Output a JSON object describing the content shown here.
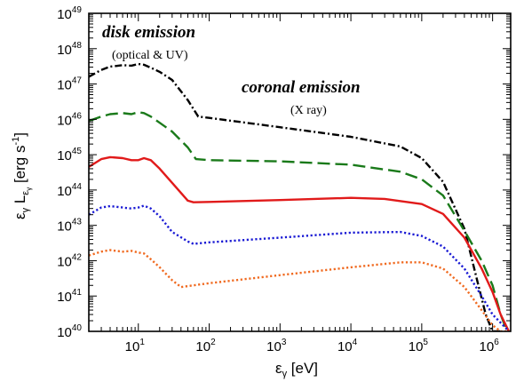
{
  "chart_data": {
    "type": "line",
    "xlabel": "εγ [eV]",
    "ylabel": "εγ Lεγ [erg s-1]",
    "x_scale": "log",
    "y_scale": "log",
    "xlim": [
      2.0,
      1800000.0
    ],
    "ylim": [
      1e+40,
      1e+49
    ],
    "x_ticks": [
      {
        "value": 10,
        "base": "10",
        "exp": "1"
      },
      {
        "value": 100,
        "base": "10",
        "exp": "2"
      },
      {
        "value": 1000,
        "base": "10",
        "exp": "3"
      },
      {
        "value": 10000,
        "base": "10",
        "exp": "4"
      },
      {
        "value": 100000,
        "base": "10",
        "exp": "5"
      },
      {
        "value": 1000000,
        "base": "10",
        "exp": "6"
      }
    ],
    "y_ticks": [
      {
        "value": 1e+40,
        "base": "10",
        "exp": "40"
      },
      {
        "value": 1e+41,
        "base": "10",
        "exp": "41"
      },
      {
        "value": 1e+42,
        "base": "10",
        "exp": "42"
      },
      {
        "value": 1e+43,
        "base": "10",
        "exp": "43"
      },
      {
        "value": 1e+44,
        "base": "10",
        "exp": "44"
      },
      {
        "value": 1e+45,
        "base": "10",
        "exp": "45"
      },
      {
        "value": 1e+46,
        "base": "10",
        "exp": "46"
      },
      {
        "value": 1e+47,
        "base": "10",
        "exp": "47"
      },
      {
        "value": 1e+48,
        "base": "10",
        "exp": "48"
      },
      {
        "value": 1e+49,
        "base": "10",
        "exp": "49"
      }
    ],
    "annotations": {
      "disk_title": "disk emission",
      "disk_sub": "(optical & UV)",
      "corona_title": "coronal emission",
      "corona_sub": "(X ray)"
    },
    "series": [
      {
        "color": "#000000",
        "dash": "dashdot",
        "x": [
          2,
          3,
          4,
          6,
          8,
          10,
          12,
          15,
          20,
          30,
          50,
          70,
          100,
          1000,
          10000,
          50000,
          100000,
          200000,
          400000,
          600000,
          800000,
          1000000,
          1300000
        ],
        "y": [
          1.6e+47,
          2.5e+47,
          3.1e+47,
          3.4e+47,
          3.3e+47,
          3.7e+47,
          3.5e+47,
          2.9e+47,
          2.2e+47,
          1.3e+47,
          3.5e+46,
          1.2e+46,
          1.1e+46,
          6e+45,
          3.2e+45,
          1.7e+45,
          8e+44,
          1.7e+44,
          8e+42,
          3e+41,
          3e+40,
          1e+40,
          1e+40
        ]
      },
      {
        "color": "#1a7a1a",
        "dash": "dashed",
        "x": [
          2,
          3,
          4,
          6,
          8,
          10,
          12,
          15,
          20,
          30,
          50,
          65,
          100,
          1000,
          10000,
          50000,
          100000,
          200000,
          400000,
          700000,
          1000000,
          1300000,
          1600000
        ],
        "y": [
          9e+45,
          1.2e+46,
          1.4e+46,
          1.5e+46,
          1.4e+46,
          1.6e+46,
          1.5e+46,
          1.2e+46,
          8e+45,
          4.5e+45,
          1.6e+45,
          7.5e+44,
          7e+44,
          6.5e+44,
          5.2e+44,
          3.3e+44,
          2e+44,
          7e+43,
          7e+42,
          1e+42,
          2e+41,
          3e+40,
          1e+40
        ]
      },
      {
        "color": "#e11a1a",
        "dash": "solid",
        "x": [
          2,
          3,
          4,
          6,
          8,
          10,
          12,
          15,
          20,
          30,
          50,
          60,
          100,
          1000,
          10000,
          30000,
          100000,
          200000,
          400000,
          700000,
          1000000,
          1300000,
          1700000
        ],
        "y": [
          4.5e+44,
          7.5e+44,
          8.5e+44,
          8e+44,
          7e+44,
          7e+44,
          8e+44,
          7e+44,
          4e+44,
          1.6e+44,
          5e+43,
          4.5e+43,
          4.6e+43,
          5.2e+43,
          6e+43,
          5.6e+43,
          4e+43,
          2.1e+43,
          4.5e+42,
          6e+41,
          1.3e+41,
          3e+40,
          1e+40
        ]
      },
      {
        "color": "#1a1ad4",
        "dash": "dotted",
        "x": [
          2,
          3,
          4,
          6,
          8,
          10,
          12,
          15,
          20,
          30,
          50,
          60,
          100,
          1000,
          10000,
          50000,
          100000,
          200000,
          400000,
          700000,
          1000000,
          1400000,
          1700000
        ],
        "y": [
          2e+43,
          3.2e+43,
          3.5e+43,
          3.2e+43,
          3e+43,
          3.2e+43,
          3.6e+43,
          3e+43,
          1.8e+43,
          6.5e+42,
          3.5e+42,
          3e+42,
          3.3e+42,
          4.5e+42,
          6.2e+42,
          6.5e+42,
          5e+42,
          2.5e+42,
          6e+41,
          1e+41,
          3e+40,
          1.5e+40,
          1e+40
        ]
      },
      {
        "color": "#f06a20",
        "dash": "dotted",
        "x": [
          2,
          3,
          4,
          6,
          8,
          10,
          12,
          15,
          20,
          30,
          40,
          100,
          1000,
          10000,
          50000,
          100000,
          200000,
          400000,
          700000,
          1000000,
          1300000,
          1800000
        ],
        "y": [
          1.4e+42,
          1.8e+42,
          2e+42,
          1.8e+42,
          1.9e+42,
          1.7e+42,
          1.6e+42,
          1.1e+42,
          6.5e+41,
          2.8e+41,
          1.8e+41,
          2.3e+41,
          3.9e+41,
          6.5e+41,
          9e+41,
          9e+41,
          6e+41,
          1.8e+41,
          4e+40,
          1.5e+40,
          1e+40,
          1e+40
        ]
      }
    ]
  }
}
